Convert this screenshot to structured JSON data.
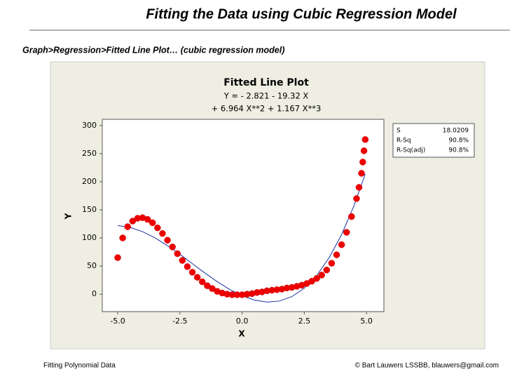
{
  "header": {
    "title": "Fitting the Data using Cubic Regression Model",
    "subtitle": "Graph>Regression>Fitted Line Plot… (cubic regression model)"
  },
  "footer": {
    "left": "Fitting Polynomial Data",
    "right": "© Bart Lauwers LSSBB, blauwers@gmail.com"
  },
  "chart_data": {
    "type": "scatter",
    "title": "Fitted Line Plot",
    "equation": [
      "Y =  - 2.821 - 19.32 X",
      "+ 6.964 X**2 + 1.167 X**3"
    ],
    "x_label": "X",
    "y_label": "Y",
    "xlim": [
      -5.62,
      5.7
    ],
    "ylim": [
      -31,
      311
    ],
    "xticks": [
      {
        "value": -5,
        "label": "-5.0"
      },
      {
        "value": -2.5,
        "label": "-2.5"
      },
      {
        "value": 0,
        "label": "0.0"
      },
      {
        "value": 2.5,
        "label": "2.5"
      },
      {
        "value": 5,
        "label": "5.0"
      }
    ],
    "yticks": [
      0,
      50,
      100,
      150,
      200,
      250,
      300
    ],
    "color": "#ee0000",
    "x": [
      -5.0,
      -4.8,
      -4.6,
      -4.4,
      -4.2,
      -4.0,
      -3.8,
      -3.6,
      -3.4,
      -3.2,
      -3.0,
      -2.8,
      -2.6,
      -2.4,
      -2.2,
      -2.0,
      -1.8,
      -1.6,
      -1.4,
      -1.2,
      -1.0,
      -0.8,
      -0.6,
      -0.4,
      -0.2,
      0.0,
      0.2,
      0.4,
      0.6,
      0.8,
      1.0,
      1.2,
      1.4,
      1.6,
      1.8,
      2.0,
      2.2,
      2.4,
      2.6,
      2.8,
      3.0,
      3.2,
      3.4,
      3.6,
      3.8,
      4.0,
      4.2,
      4.4,
      4.6,
      4.7,
      4.8,
      4.85,
      4.9,
      4.95
    ],
    "values": [
      65,
      100,
      120,
      130,
      135,
      136,
      133,
      127,
      118,
      108,
      96,
      84,
      72,
      60,
      49,
      39,
      30,
      22,
      15,
      10,
      5,
      2,
      0,
      -1,
      -1,
      -1,
      0,
      1,
      3,
      4,
      6,
      7,
      8,
      9,
      11,
      12,
      14,
      16,
      19,
      23,
      28,
      34,
      43,
      55,
      70,
      88,
      110,
      138,
      170,
      190,
      215,
      235,
      255,
      275
    ],
    "fit": {
      "color": "#1f2fa0",
      "x": [
        -5,
        -4.5,
        -4,
        -3.5,
        -3,
        -2.5,
        -2,
        -1.5,
        -1,
        -0.5,
        0,
        0.5,
        1,
        1.5,
        2,
        2.5,
        3,
        3.5,
        4,
        4.5,
        4.95
      ],
      "values": [
        122.0,
        118.8,
        111.2,
        100.1,
        86.3,
        70.8,
        54.3,
        37.9,
        22.3,
        8.4,
        -2.8,
        -10.6,
        -14.0,
        -12.2,
        -4.3,
        10.6,
        33.4,
        64.9,
        106.0,
        157.6,
        213.7
      ]
    },
    "stats": [
      [
        "S",
        "18.0209"
      ],
      [
        "R-Sq",
        "90.8%"
      ],
      [
        "R-Sq(adj)",
        "90.8%"
      ]
    ]
  }
}
